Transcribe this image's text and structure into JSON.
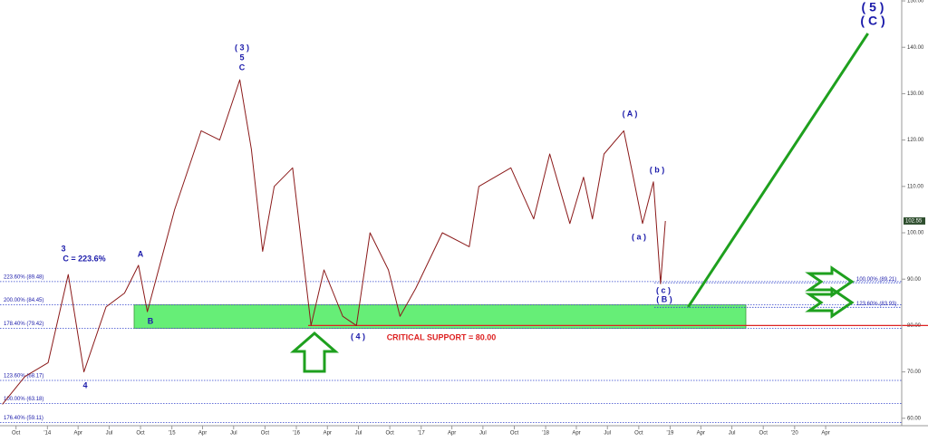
{
  "chart_data": {
    "type": "line",
    "xlim": [
      "2013-08-15",
      "2020-11-10"
    ],
    "ylim": [
      58.4,
      150.2
    ],
    "yticks": [
      {
        "value": 150,
        "label": "150.00"
      },
      {
        "value": 140,
        "label": "140.00"
      },
      {
        "value": 130,
        "label": "130.00"
      },
      {
        "value": 120,
        "label": "120.00"
      },
      {
        "value": 110,
        "label": "110.00"
      },
      {
        "value": 100,
        "label": "100.00"
      },
      {
        "value": 90,
        "label": "90.00"
      },
      {
        "value": 80,
        "label": "80.00"
      },
      {
        "value": 70,
        "label": "70.00"
      },
      {
        "value": 60,
        "label": "60.00"
      }
    ],
    "xticks": [
      {
        "value": "2013-10-01",
        "label": "Oct"
      },
      {
        "value": "2014-01-01",
        "label": "'14"
      },
      {
        "value": "2014-04-01",
        "label": "Apr"
      },
      {
        "value": "2014-07-01",
        "label": "Jul"
      },
      {
        "value": "2014-10-01",
        "label": "Oct"
      },
      {
        "value": "2015-01-01",
        "label": "'15"
      },
      {
        "value": "2015-04-01",
        "label": "Apr"
      },
      {
        "value": "2015-07-01",
        "label": "Jul"
      },
      {
        "value": "2015-10-01",
        "label": "Oct"
      },
      {
        "value": "2016-01-01",
        "label": "'16"
      },
      {
        "value": "2016-04-01",
        "label": "Apr"
      },
      {
        "value": "2016-07-01",
        "label": "Jul"
      },
      {
        "value": "2016-10-01",
        "label": "Oct"
      },
      {
        "value": "2017-01-01",
        "label": "'17"
      },
      {
        "value": "2017-04-01",
        "label": "Apr"
      },
      {
        "value": "2017-07-01",
        "label": "Jul"
      },
      {
        "value": "2017-10-01",
        "label": "Oct"
      },
      {
        "value": "2018-01-01",
        "label": "'18"
      },
      {
        "value": "2018-04-01",
        "label": "Apr"
      },
      {
        "value": "2018-07-01",
        "label": "Jul"
      },
      {
        "value": "2018-10-01",
        "label": "Oct"
      },
      {
        "value": "2019-01-01",
        "label": "'19"
      },
      {
        "value": "2019-04-01",
        "label": "Apr"
      },
      {
        "value": "2019-07-01",
        "label": "Jul"
      },
      {
        "value": "2019-10-01",
        "label": "Oct"
      },
      {
        "value": "2020-01-01",
        "label": "'20"
      },
      {
        "value": "2020-04-01",
        "label": "Apr"
      }
    ],
    "series": [
      {
        "color": "#8b1a1a",
        "x": [
          "2013-08-22",
          "2013-10-27",
          "2014-01-03",
          "2014-03-03",
          "2014-04-18",
          "2014-06-22",
          "2014-08-15",
          "2014-09-25",
          "2014-10-21",
          "2015-01-09",
          "2015-03-28",
          "2015-05-21",
          "2015-07-19",
          "2015-08-22",
          "2015-09-24",
          "2015-10-28",
          "2015-12-21",
          "2016-02-13",
          "2016-03-22",
          "2016-05-16",
          "2016-06-25",
          "2016-08-04",
          "2016-09-27",
          "2016-10-31",
          "2016-12-16",
          "2017-03-04",
          "2017-05-22",
          "2017-06-19",
          "2017-09-21",
          "2017-11-27",
          "2018-01-13",
          "2018-03-13",
          "2018-04-22",
          "2018-05-18",
          "2018-06-21",
          "2018-08-18",
          "2018-09-15",
          "2018-10-12",
          "2018-11-13",
          "2018-12-04",
          "2018-12-18"
        ],
        "values": [
          63,
          69,
          72,
          91,
          70,
          84,
          87,
          93,
          83,
          105,
          122,
          120,
          133,
          118,
          96,
          110,
          114,
          80,
          92,
          82,
          80,
          100,
          92,
          82,
          88,
          100,
          97,
          110,
          114,
          103,
          117,
          102,
          112,
          103,
          117,
          122,
          112,
          102,
          111,
          89,
          102.55
        ]
      },
      {
        "color": "#1ea01e",
        "x": [
          "2019-02-23",
          "2020-08-03"
        ],
        "values": [
          84,
          143
        ]
      }
    ],
    "last_price": 102.55,
    "support_zone": [
      84.45,
      79.42
    ],
    "critical_support": 80,
    "levels": [
      {
        "value": 89.48,
        "label": "223.60% (89.48)"
      },
      {
        "value": 84.45,
        "label": "200.00% (84.45)"
      },
      {
        "value": 79.42,
        "label": "178.40% (79.42)"
      },
      {
        "value": 68.17,
        "label": "123.60% (68.17)"
      },
      {
        "value": 63.18,
        "label": "100.00% (63.18)"
      },
      {
        "value": 59.11,
        "label": "176.40% (59.11)"
      }
    ],
    "right_levels": [
      {
        "value": 89.21,
        "label": "100.00% (89.21)"
      },
      {
        "value": 83.93,
        "label": "123.60% (83.93)"
      }
    ],
    "annotations": [
      "3",
      "C = 223.6%",
      "4",
      "A",
      "B",
      "( 3 )",
      "5",
      "C",
      "( 4 )",
      "CRITICAL SUPPORT = 80.00",
      "( A )",
      "( b )",
      "( a )",
      "( c )",
      "( B )",
      "( 5 )",
      "( C )"
    ]
  }
}
